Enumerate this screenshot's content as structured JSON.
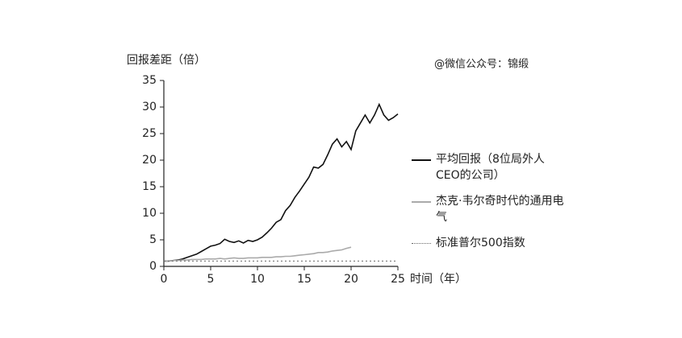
{
  "chart_data": {
    "type": "line",
    "y_label": "回报差距（倍）",
    "x_label": "时间（年）",
    "annotation": "@微信公众号：锦缎",
    "x": [
      0,
      0.5,
      1,
      1.5,
      2,
      2.5,
      3,
      3.5,
      4,
      4.5,
      5,
      5.5,
      6,
      6.5,
      7,
      7.5,
      8,
      8.5,
      9,
      9.5,
      10,
      10.5,
      11,
      11.5,
      12,
      12.5,
      13,
      13.5,
      14,
      14.5,
      15,
      15.5,
      16,
      16.5,
      17,
      17.5,
      18,
      18.5,
      19,
      19.5,
      20,
      20.5,
      21,
      21.5,
      22,
      22.5,
      23,
      23.5,
      24,
      24.5,
      25
    ],
    "series": [
      {
        "name": "平均回报（8位局外人CEO的公司）",
        "color": "#111111",
        "style": "solid",
        "values": [
          1.0,
          1.0,
          1.1,
          1.2,
          1.4,
          1.7,
          2.0,
          2.3,
          2.8,
          3.3,
          3.8,
          4.0,
          4.3,
          5.1,
          4.7,
          4.5,
          4.8,
          4.4,
          4.9,
          4.7,
          5.0,
          5.5,
          6.3,
          7.2,
          8.3,
          8.8,
          10.5,
          11.5,
          13.0,
          14.2,
          15.5,
          16.8,
          18.7,
          18.5,
          19.2,
          21.0,
          23.0,
          24.0,
          22.5,
          23.5,
          22.0,
          25.5,
          27.0,
          28.5,
          27.0,
          28.5,
          30.5,
          28.5,
          27.5,
          28.0,
          28.7
        ]
      },
      {
        "name": "杰克·韦尔奇时代的通用电气",
        "color": "#aaaaaa",
        "style": "solid",
        "values": [
          1.0,
          1.0,
          1.1,
          1.1,
          1.2,
          1.2,
          1.3,
          1.3,
          1.3,
          1.4,
          1.4,
          1.4,
          1.5,
          1.4,
          1.5,
          1.6,
          1.5,
          1.5,
          1.6,
          1.6,
          1.6,
          1.7,
          1.7,
          1.7,
          1.8,
          1.8,
          1.9,
          1.9,
          2.0,
          2.1,
          2.2,
          2.3,
          2.4,
          2.6,
          2.6,
          2.7,
          2.9,
          3.0,
          3.1,
          3.4,
          3.6,
          null,
          null,
          null,
          null,
          null,
          null,
          null,
          null,
          null,
          null
        ]
      },
      {
        "name": "标准普尔500指数",
        "color": "#666666",
        "style": "dotted",
        "values": [
          1,
          1,
          1,
          1,
          1,
          1,
          1,
          1,
          1,
          1,
          1,
          1,
          1,
          1,
          1,
          1,
          1,
          1,
          1,
          1,
          1,
          1,
          1,
          1,
          1,
          1,
          1,
          1,
          1,
          1,
          1,
          1,
          1,
          1,
          1,
          1,
          1,
          1,
          1,
          1,
          1,
          1,
          1,
          1,
          1,
          1,
          1,
          1,
          1,
          1,
          1
        ]
      }
    ],
    "xlim": [
      0,
      25
    ],
    "ylim": [
      0,
      35
    ],
    "xticks": [
      0,
      5,
      10,
      15,
      20,
      25
    ],
    "yticks": [
      0,
      5,
      10,
      15,
      20,
      25,
      30,
      35
    ],
    "grid": false
  }
}
